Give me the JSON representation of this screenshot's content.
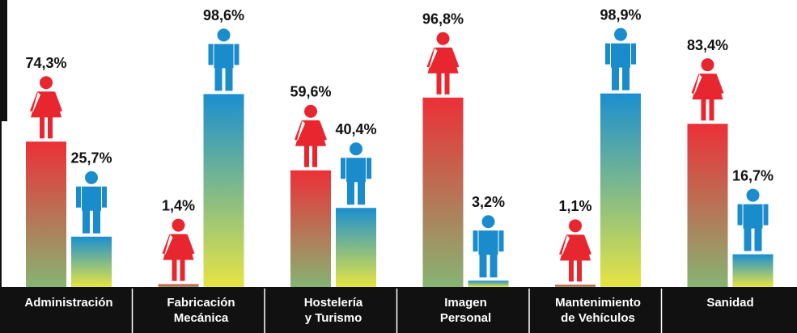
{
  "chart_data": {
    "type": "bar",
    "categories": [
      "Administración",
      "Fabricación\nMecánica",
      "Hostelería\ny Turismo",
      "Imagen\nPersonal",
      "Mantenimiento\nde Vehículos",
      "Sanidad"
    ],
    "ylim": [
      0,
      100
    ],
    "series": [
      {
        "color": "#e8262f",
        "gradient": [
          "#ec3038",
          "#86b472"
        ],
        "icon": "woman",
        "values": [
          74.3,
          1.4,
          59.6,
          96.8,
          1.1,
          83.4
        ],
        "value_labels": [
          "74,3%",
          "1,4%",
          "59,6%",
          "96,8%",
          "1,1%",
          "83,4%"
        ]
      },
      {
        "color": "#1a8ccc",
        "gradient": [
          "#1b8fd0",
          "#e6e443"
        ],
        "icon": "man",
        "values": [
          25.7,
          98.6,
          40.4,
          3.2,
          98.9,
          16.7
        ],
        "value_labels": [
          "25,7%",
          "98,6%",
          "40,4%",
          "3,2%",
          "98,9%",
          "16,7%"
        ]
      }
    ]
  }
}
